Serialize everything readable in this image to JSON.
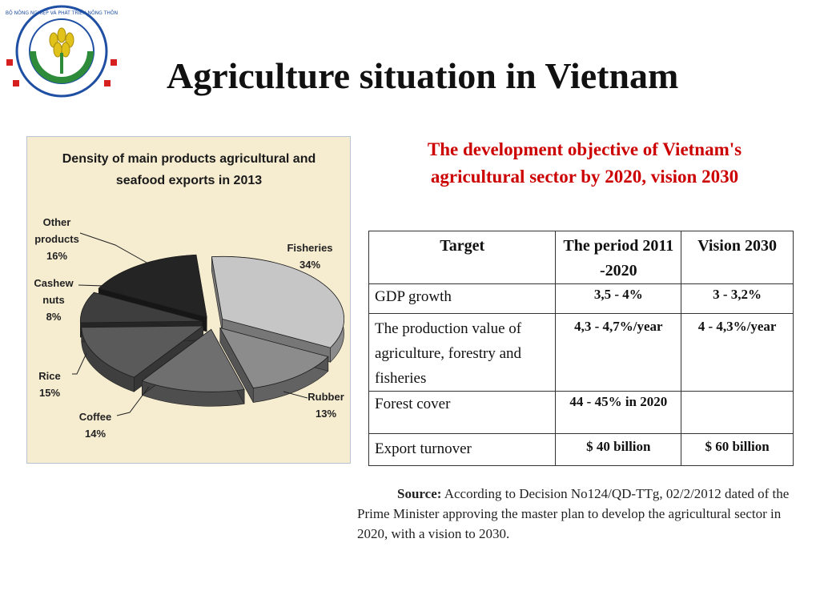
{
  "title": "Agriculture situation in Vietnam",
  "logo": {
    "icon": "ministry-of-agriculture-logo",
    "text": "BỘ NÔNG NGHIỆP VÀ PHÁT TRIỂN NÔNG THÔN"
  },
  "objective_heading": "The development objective of Vietnam's agricultural sector by 2020, vision 2030",
  "table": {
    "headers": [
      "Target",
      "The period 2011 -2020",
      "Vision 2030"
    ],
    "rows": [
      {
        "target": "GDP growth",
        "period": "3,5 - 4%",
        "vision": "3 - 3,2%"
      },
      {
        "target": "The production value of agriculture, forestry and fisheries",
        "period": "4,3 - 4,7%/year",
        "vision": "4 - 4,3%/year"
      },
      {
        "target": "Forest cover",
        "period": "44 - 45%  in 2020",
        "vision": ""
      },
      {
        "target": "Export turnover",
        "period": "$ 40 billion",
        "vision": "$ 60 billion"
      }
    ]
  },
  "source": {
    "label": "Source:",
    "text": "According to Decision No124/QD-TTg, 02/2/2012 dated of the Prime Minister approving the master plan to develop the agricultural sector in 2020, with a vision to 2030."
  },
  "chart_data": {
    "type": "pie",
    "title": "Density of main products agricultural and seafood exports in 2013",
    "style": "3d-exploded",
    "slices": [
      {
        "label": "Fisheries",
        "value": 34,
        "pct": "34%",
        "color": "#c6c6c6"
      },
      {
        "label": "Rubber",
        "value": 13,
        "pct": "13%",
        "color": "#8c8c8c"
      },
      {
        "label": "Coffee",
        "value": 14,
        "pct": "14%",
        "color": "#6f6f6f"
      },
      {
        "label": "Rice",
        "value": 15,
        "pct": "15%",
        "color": "#5a5a5a"
      },
      {
        "label": "Cashew nuts",
        "value": 8,
        "pct": "8%",
        "color": "#3e3e3e"
      },
      {
        "label": "Other products",
        "value": 16,
        "pct": "16%",
        "color": "#242424"
      }
    ]
  }
}
